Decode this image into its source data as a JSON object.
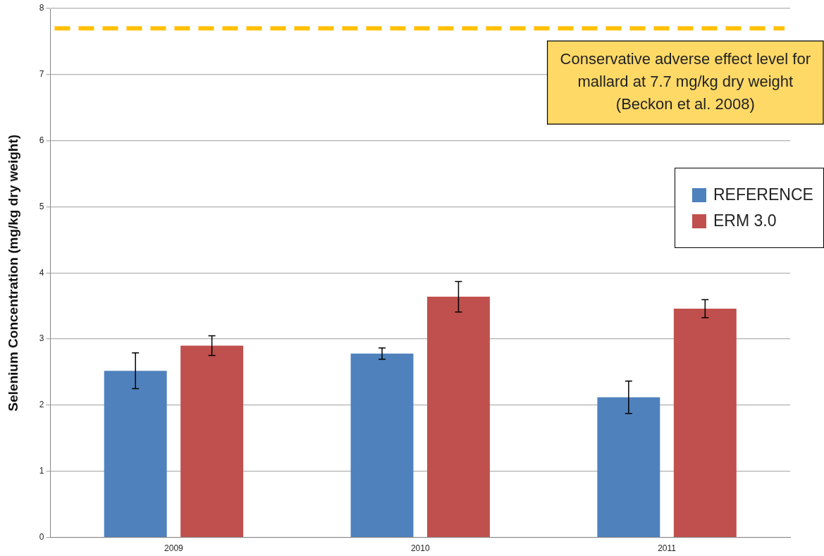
{
  "chart_data": {
    "type": "bar",
    "ylabel": "Selenium Concentration (mg/kg dry weight)",
    "categories": [
      "2009",
      "2010",
      "2011"
    ],
    "series": [
      {
        "name": "REFERENCE",
        "color": "#4f81bd",
        "values": [
          2.52,
          2.78,
          2.12
        ],
        "errors": [
          0.27,
          0.085,
          0.245
        ]
      },
      {
        "name": "ERM 3.0",
        "color": "#c0504d",
        "values": [
          2.9,
          3.64,
          3.46
        ],
        "errors": [
          0.15,
          0.23,
          0.135
        ]
      }
    ],
    "ylim": [
      0,
      8
    ],
    "yticks": [
      0,
      1,
      2,
      3,
      4,
      5,
      6,
      7,
      8
    ],
    "grid": "y",
    "legend": "right",
    "ref_lines": [
      {
        "axis": "y",
        "value": 7.7,
        "label": "Conservative adverse effect level for\nmallard at 7.7 mg/kg dry weight\n(Beckon et al. 2008)",
        "color": "#ffc000",
        "line_style": "dashed"
      }
    ]
  }
}
